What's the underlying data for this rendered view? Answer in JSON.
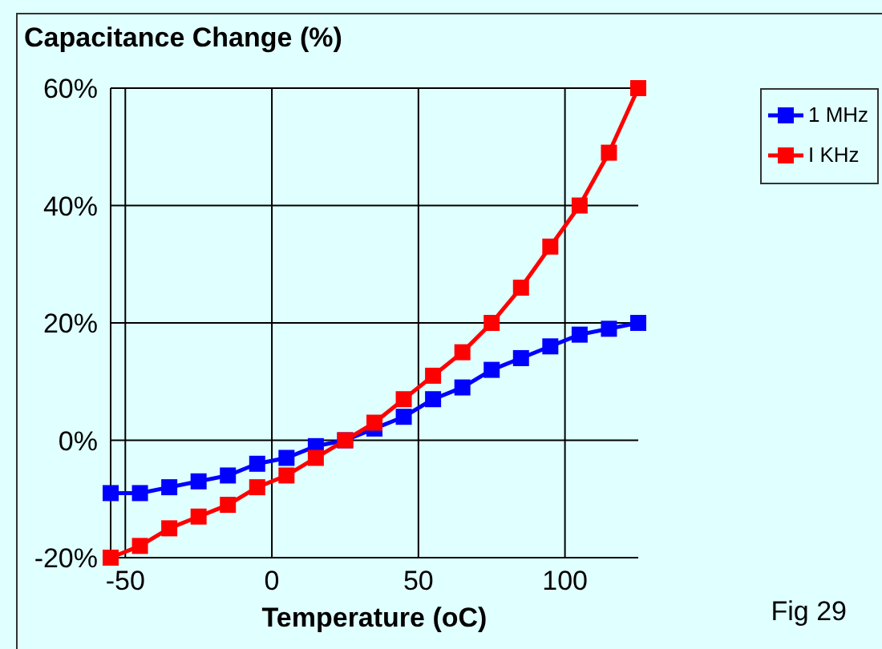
{
  "chart_data": {
    "type": "line",
    "title": "Capacitance Change (%)",
    "xlabel": "Temperature (oC)",
    "annotations": [
      "Fig 29"
    ],
    "x": [
      -55,
      -45,
      -35,
      -25,
      -15,
      -5,
      5,
      15,
      25,
      35,
      45,
      55,
      65,
      75,
      85,
      95,
      105,
      115,
      125
    ],
    "series": [
      {
        "name": "1 MHz",
        "color": "#0000ff",
        "values": [
          -9,
          -9,
          -8,
          -7,
          -6,
          -4,
          -3,
          -1,
          0,
          2,
          4,
          7,
          9,
          12,
          14,
          16,
          18,
          19,
          20
        ]
      },
      {
        "name": "I KHz",
        "color": "#ff0000",
        "values": [
          -20,
          -18,
          -15,
          -13,
          -11,
          -8,
          -6,
          -3,
          0,
          3,
          7,
          11,
          15,
          20,
          26,
          33,
          40,
          49,
          60
        ]
      }
    ],
    "xlim": [
      -55,
      125
    ],
    "xticks": [
      -50,
      0,
      50,
      100
    ],
    "ylim": [
      -20,
      60
    ],
    "yticks": [
      {
        "value": -20,
        "label": "-20%"
      },
      {
        "value": 0,
        "label": "0%"
      },
      {
        "value": 20,
        "label": "20%"
      },
      {
        "value": 40,
        "label": "40%"
      },
      {
        "value": 60,
        "label": "60%"
      }
    ],
    "grid": true,
    "legend": "top right",
    "marker": "square",
    "line_style": "solid"
  }
}
